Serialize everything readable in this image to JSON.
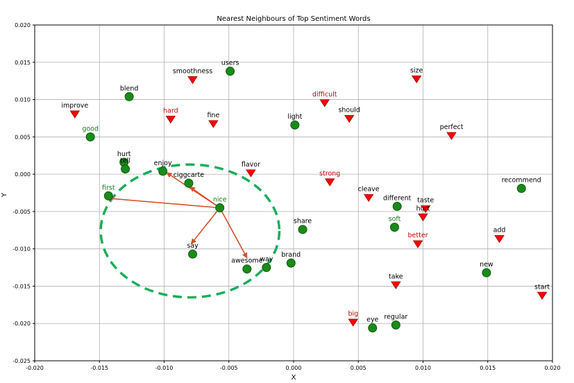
{
  "chart_data": {
    "type": "scatter",
    "title": "Nearest Neighbours of Top Sentiment Words",
    "xlabel": "X",
    "ylabel": "Y",
    "xlim": [
      -0.02,
      0.02
    ],
    "ylim": [
      -0.025,
      0.02
    ],
    "xticks": [
      -0.02,
      -0.015,
      -0.01,
      -0.005,
      0.0,
      0.005,
      0.01,
      0.015,
      0.02
    ],
    "xtick_labels": [
      "-0.020",
      "-0.015",
      "-0.010",
      "-0.005",
      "0.000",
      "0.005",
      "0.010",
      "0.015",
      "0.020"
    ],
    "yticks": [
      -0.025,
      -0.02,
      -0.015,
      -0.01,
      -0.005,
      0.0,
      0.005,
      0.01,
      0.015,
      0.02
    ],
    "ytick_labels": [
      "-0.025",
      "-0.020",
      "-0.015",
      "-0.010",
      "-0.005",
      "0.000",
      "0.005",
      "0.010",
      "0.015",
      "0.020"
    ],
    "grid": true,
    "colors": {
      "positive_marker": "#1a8a1a",
      "positive_marker_edge": "#0d5c0d",
      "negative_marker": "#ff0000",
      "negative_marker_edge": "#990000",
      "highlight_positive_text": "#1a7a1a",
      "highlight_negative_text": "#cc0000",
      "normal_text": "#000000",
      "arrow": "#d2512a",
      "ellipse": "#1aad5a"
    },
    "points": [
      {
        "label": "users",
        "x": -0.0049,
        "y": 0.0138,
        "marker": "circle",
        "label_color": "normal"
      },
      {
        "label": "smoothness",
        "x": -0.0078,
        "y": 0.0127,
        "marker": "triangle",
        "label_color": "normal"
      },
      {
        "label": "blend",
        "x": -0.0127,
        "y": 0.0104,
        "marker": "circle",
        "label_color": "normal"
      },
      {
        "label": "improve",
        "x": -0.0169,
        "y": 0.0081,
        "marker": "triangle",
        "label_color": "normal"
      },
      {
        "label": "hard",
        "x": -0.0095,
        "y": 0.0074,
        "marker": "triangle",
        "label_color": "negative"
      },
      {
        "label": "fine",
        "x": -0.0062,
        "y": 0.0068,
        "marker": "triangle",
        "label_color": "normal"
      },
      {
        "label": "good",
        "x": -0.0157,
        "y": 0.005,
        "marker": "circle",
        "label_color": "positive"
      },
      {
        "label": "hurt",
        "x": -0.0131,
        "y": 0.0016,
        "marker": "circle",
        "label_color": "normal"
      },
      {
        "label": "tell",
        "x": -0.013,
        "y": 0.0007,
        "marker": "circle",
        "label_color": "normal"
      },
      {
        "label": "enjoy",
        "x": -0.0101,
        "y": 0.0004,
        "marker": "circle",
        "label_color": "normal"
      },
      {
        "label": "ciggcarte",
        "x": -0.0081,
        "y": -0.0012,
        "marker": "circle",
        "label_color": "normal"
      },
      {
        "label": "first",
        "x": -0.0143,
        "y": -0.0029,
        "marker": "circle",
        "label_color": "positive"
      },
      {
        "label": "nice",
        "x": -0.0057,
        "y": -0.0045,
        "marker": "circle",
        "label_color": "positive"
      },
      {
        "label": "say",
        "x": -0.0078,
        "y": -0.0107,
        "marker": "circle",
        "label_color": "normal"
      },
      {
        "label": "awesome",
        "x": -0.0036,
        "y": -0.0127,
        "marker": "circle",
        "label_color": "normal"
      },
      {
        "label": "way",
        "x": -0.0021,
        "y": -0.0125,
        "marker": "circle",
        "label_color": "normal"
      },
      {
        "label": "brand",
        "x": -0.0002,
        "y": -0.0119,
        "marker": "circle",
        "label_color": "normal"
      },
      {
        "label": "flavor",
        "x": -0.0033,
        "y": 0.0002,
        "marker": "triangle",
        "label_color": "normal"
      },
      {
        "label": "light",
        "x": 0.0001,
        "y": 0.0066,
        "marker": "circle",
        "label_color": "normal"
      },
      {
        "label": "difficult",
        "x": 0.0024,
        "y": 0.0096,
        "marker": "triangle",
        "label_color": "negative"
      },
      {
        "label": "should",
        "x": 0.0043,
        "y": 0.0075,
        "marker": "triangle",
        "label_color": "normal"
      },
      {
        "label": "strong",
        "x": 0.0028,
        "y": -0.001,
        "marker": "triangle",
        "label_color": "negative"
      },
      {
        "label": "share",
        "x": 0.0007,
        "y": -0.0074,
        "marker": "circle",
        "label_color": "normal"
      },
      {
        "label": "cleave",
        "x": 0.0058,
        "y": -0.0031,
        "marker": "triangle",
        "label_color": "normal"
      },
      {
        "label": "different",
        "x": 0.008,
        "y": -0.0043,
        "marker": "circle",
        "label_color": "normal"
      },
      {
        "label": "soft",
        "x": 0.0078,
        "y": -0.0071,
        "marker": "circle",
        "label_color": "positive"
      },
      {
        "label": "size",
        "x": 0.0095,
        "y": 0.0128,
        "marker": "triangle",
        "label_color": "normal"
      },
      {
        "label": "perfect",
        "x": 0.0122,
        "y": 0.0052,
        "marker": "triangle",
        "label_color": "normal"
      },
      {
        "label": "taste",
        "x": 0.0102,
        "y": -0.0046,
        "marker": "triangle",
        "label_color": "normal"
      },
      {
        "label": "hurt",
        "x": 0.01,
        "y": -0.0057,
        "marker": "triangle",
        "label_color": "normal"
      },
      {
        "label": "better",
        "x": 0.0096,
        "y": -0.0093,
        "marker": "triangle",
        "label_color": "negative"
      },
      {
        "label": "recommend",
        "x": 0.0176,
        "y": -0.0019,
        "marker": "circle",
        "label_color": "normal"
      },
      {
        "label": "add",
        "x": 0.0159,
        "y": -0.0086,
        "marker": "triangle",
        "label_color": "normal"
      },
      {
        "label": "new",
        "x": 0.0149,
        "y": -0.0132,
        "marker": "circle",
        "label_color": "normal"
      },
      {
        "label": "take",
        "x": 0.0079,
        "y": -0.0148,
        "marker": "triangle",
        "label_color": "normal"
      },
      {
        "label": "start",
        "x": 0.0192,
        "y": -0.0162,
        "marker": "triangle",
        "label_color": "normal"
      },
      {
        "label": "big",
        "x": 0.0046,
        "y": -0.0198,
        "marker": "triangle",
        "label_color": "negative"
      },
      {
        "label": "eye",
        "x": 0.0061,
        "y": -0.0206,
        "marker": "circle",
        "label_color": "normal"
      },
      {
        "label": "regular",
        "x": 0.0079,
        "y": -0.0202,
        "marker": "circle",
        "label_color": "normal"
      }
    ],
    "arrows": [
      {
        "from": [
          -0.0057,
          -0.0045
        ],
        "to": [
          -0.0145,
          -0.0032
        ]
      },
      {
        "from": [
          -0.0057,
          -0.0045
        ],
        "to": [
          -0.0098,
          0.0002
        ]
      },
      {
        "from": [
          -0.0057,
          -0.0045
        ],
        "to": [
          -0.008,
          -0.0017
        ]
      },
      {
        "from": [
          -0.0057,
          -0.0045
        ],
        "to": [
          -0.0079,
          -0.0093
        ]
      },
      {
        "from": [
          -0.0057,
          -0.0045
        ],
        "to": [
          -0.0036,
          -0.0112
        ]
      }
    ],
    "ellipse": {
      "cx": -0.008,
      "cy": -0.0076,
      "rx": 0.0069,
      "ry": 0.0089
    }
  }
}
